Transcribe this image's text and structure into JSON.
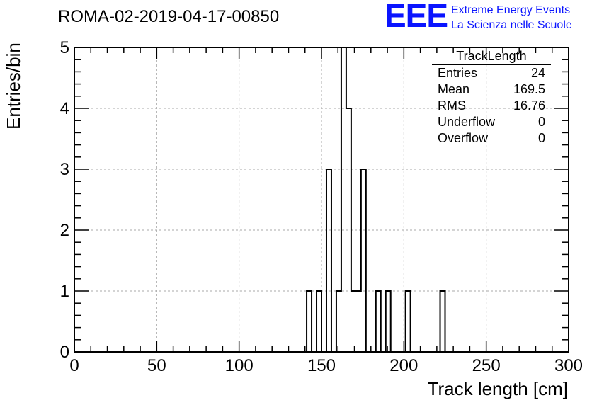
{
  "header": {
    "run_title": "ROMA-02-2019-04-17-00850",
    "logo_mark": "EEE",
    "logo_line1": "Extreme Energy Events",
    "logo_line2": "La Scienza nelle Scuole",
    "logo_color": "#0a14ff"
  },
  "stats_box": {
    "title": "TrackLength",
    "rows": [
      {
        "label": "Entries",
        "value": "24"
      },
      {
        "label": "Mean",
        "value": "169.5"
      },
      {
        "label": "RMS",
        "value": "16.76"
      },
      {
        "label": "Underflow",
        "value": "0"
      },
      {
        "label": "Overflow",
        "value": "0"
      }
    ]
  },
  "chart_data": {
    "type": "bar",
    "title": "ROMA-02-2019-04-17-00850",
    "xlabel": "Track length [cm]",
    "ylabel": "Entries/bin",
    "xlim": [
      0,
      300
    ],
    "ylim": [
      0,
      5
    ],
    "bin_width": 3,
    "grid": true,
    "x_ticks": [
      "0",
      "50",
      "100",
      "150",
      "200",
      "250",
      "300"
    ],
    "y_ticks": [
      "0",
      "1",
      "2",
      "3",
      "4",
      "5"
    ],
    "bins": [
      {
        "x0": 141,
        "x1": 144,
        "count": 1
      },
      {
        "x0": 147,
        "x1": 150,
        "count": 1
      },
      {
        "x0": 153,
        "x1": 156,
        "count": 3
      },
      {
        "x0": 159,
        "x1": 162,
        "count": 1
      },
      {
        "x0": 162,
        "x1": 165,
        "count": 5
      },
      {
        "x0": 165,
        "x1": 168,
        "count": 4
      },
      {
        "x0": 168,
        "x1": 171,
        "count": 1
      },
      {
        "x0": 171,
        "x1": 174,
        "count": 1
      },
      {
        "x0": 174,
        "x1": 177,
        "count": 3
      },
      {
        "x0": 183,
        "x1": 186,
        "count": 1
      },
      {
        "x0": 189,
        "x1": 192,
        "count": 1
      },
      {
        "x0": 201,
        "x1": 204,
        "count": 1
      },
      {
        "x0": 222,
        "x1": 225,
        "count": 1
      }
    ]
  }
}
